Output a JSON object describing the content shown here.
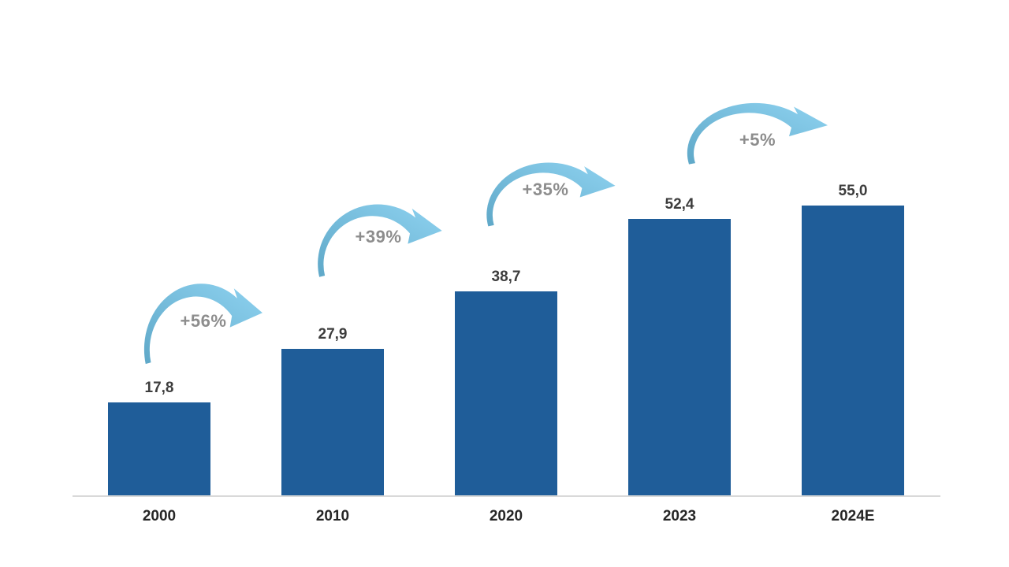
{
  "chart_data": {
    "type": "bar",
    "title": "",
    "xlabel": "",
    "ylabel": "",
    "categories": [
      "2000",
      "2010",
      "2020",
      "2023",
      "2024E"
    ],
    "values": [
      17.8,
      27.9,
      38.7,
      52.4,
      55.0
    ],
    "value_labels": [
      "17,8",
      "27,9",
      "38,7",
      "52,4",
      "55,0"
    ],
    "growth_labels": [
      "+56%",
      "+39%",
      "+35%",
      "+5%"
    ],
    "ylim": [
      0,
      60
    ],
    "grid": false,
    "legend": false,
    "decimal_separator": ",",
    "colors": {
      "bar": "#1F5D99",
      "arrow_tail": "#5FA8C8",
      "arrow_head": "#8ED2F0",
      "growth_label": "#8D8D8D",
      "value_label": "#3D3D3D",
      "category_label": "#262626",
      "axis_line": "#D9D9D9",
      "background": "#FFFFFF"
    }
  }
}
